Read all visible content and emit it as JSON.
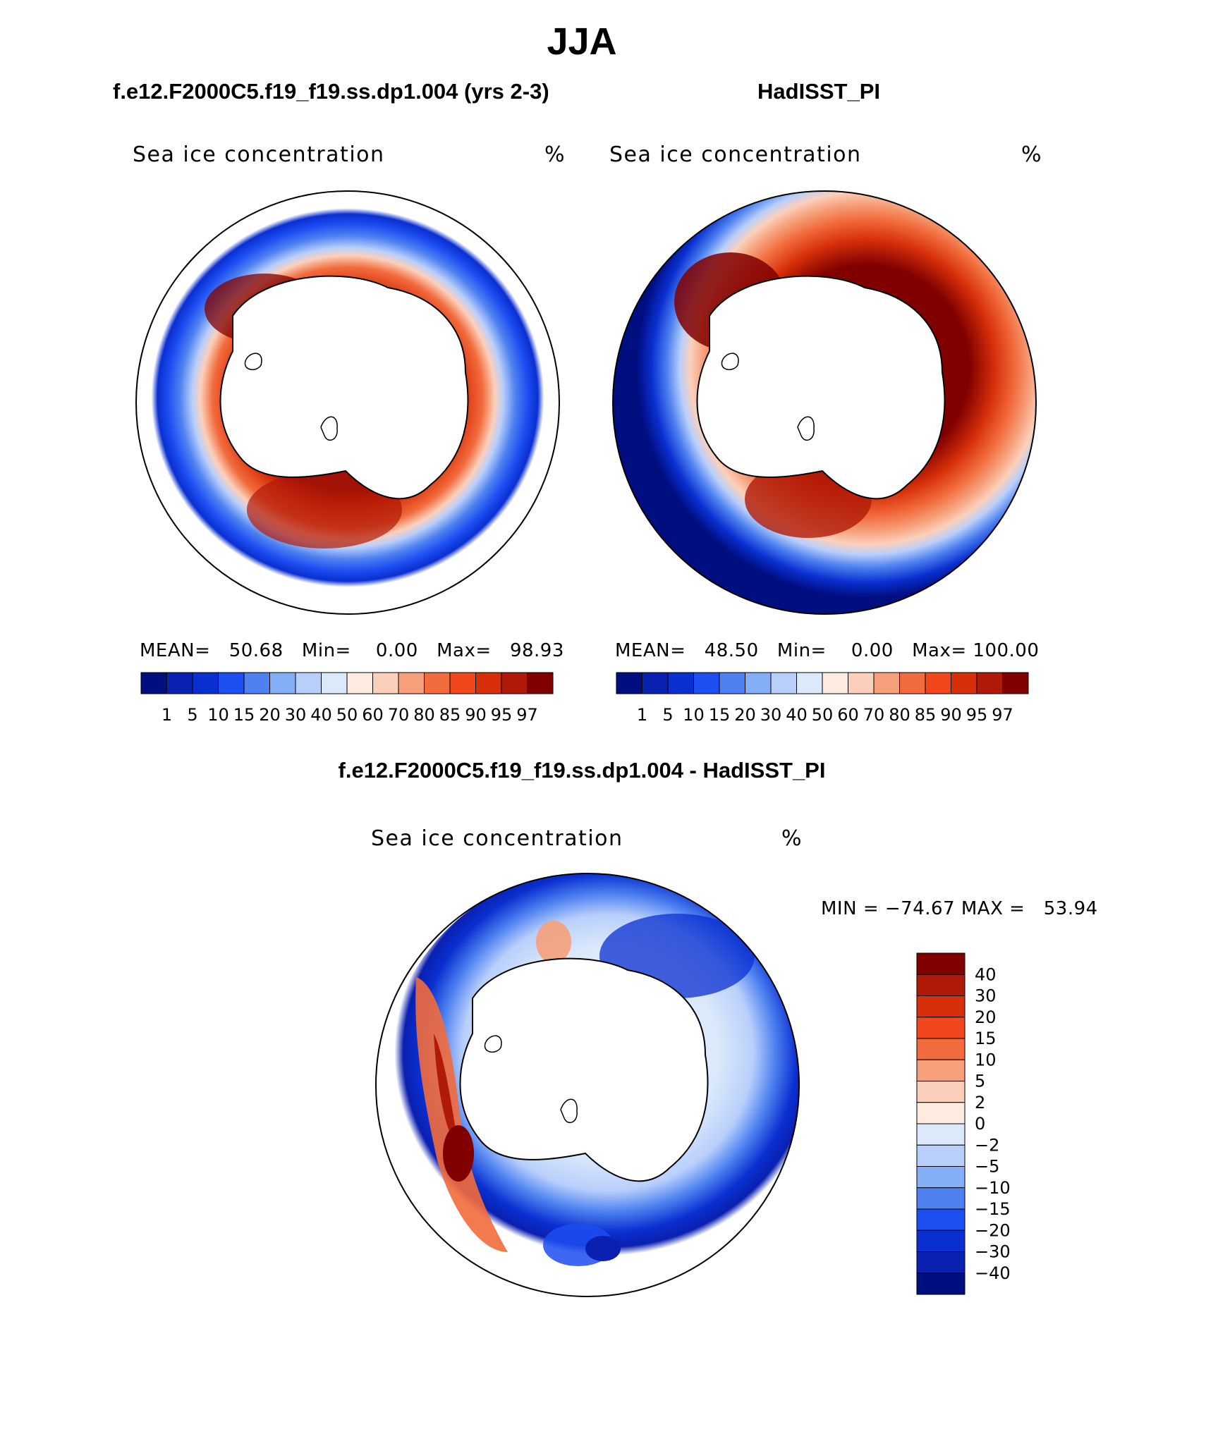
{
  "title": "JJA",
  "variable_label": "Sea ice concentration",
  "units": "%",
  "panels": [
    {
      "title": "f.e12.F2000C5.f19_f19.ss.dp1.004 (yrs 2-3)",
      "stats": {
        "mean_label": "MEAN=",
        "mean": "50.68",
        "min_label": "Min=",
        "min": "0.00",
        "max_label": "Max=",
        "max": "98.93"
      }
    },
    {
      "title": "HadISST_PI",
      "stats": {
        "mean_label": "MEAN=",
        "mean": "48.50",
        "min_label": "Min=",
        "min": "0.00",
        "max_label": "Max=",
        "max": "100.00"
      }
    }
  ],
  "difference": {
    "title": "f.e12.F2000C5.f19_f19.ss.dp1.004 - HadISST_PI",
    "stats": {
      "min_label": "MIN =",
      "min": "−74.67",
      "max_label": "MAX =",
      "max": "53.94"
    },
    "colorbar_labels": [
      "40",
      "30",
      "20",
      "15",
      "10",
      "5",
      "2",
      "0",
      "−2",
      "−5",
      "−10",
      "−15",
      "−20",
      "−30",
      "−40"
    ],
    "colors": [
      "#800000",
      "#b01a08",
      "#d62f0a",
      "#f2461c",
      "#f26b3c",
      "#f5a07a",
      "#fbd0bb",
      "#fdebe0",
      "#dbe9fb",
      "#b9cffb",
      "#84aef5",
      "#4f82f0",
      "#1c4ef2",
      "#0a2fd0",
      "#0a20b0",
      "#000e80"
    ]
  },
  "colorbar": {
    "labels": [
      "1",
      "5",
      "10",
      "15",
      "20",
      "30",
      "40",
      "50",
      "60",
      "70",
      "80",
      "85",
      "90",
      "95",
      "97"
    ],
    "colors": [
      "#000e80",
      "#0a20b0",
      "#0a2fd0",
      "#1c4ef2",
      "#4f82f0",
      "#84aef5",
      "#b9cffb",
      "#dbe9fb",
      "#fdebe0",
      "#fbd0bb",
      "#f5a07a",
      "#f26b3c",
      "#f2461c",
      "#d62f0a",
      "#b01a08",
      "#800000"
    ]
  },
  "legend_colors": {
    "land": "#ffffff",
    "coastline": "#000000",
    "ocean_edge": "#ffffff"
  }
}
